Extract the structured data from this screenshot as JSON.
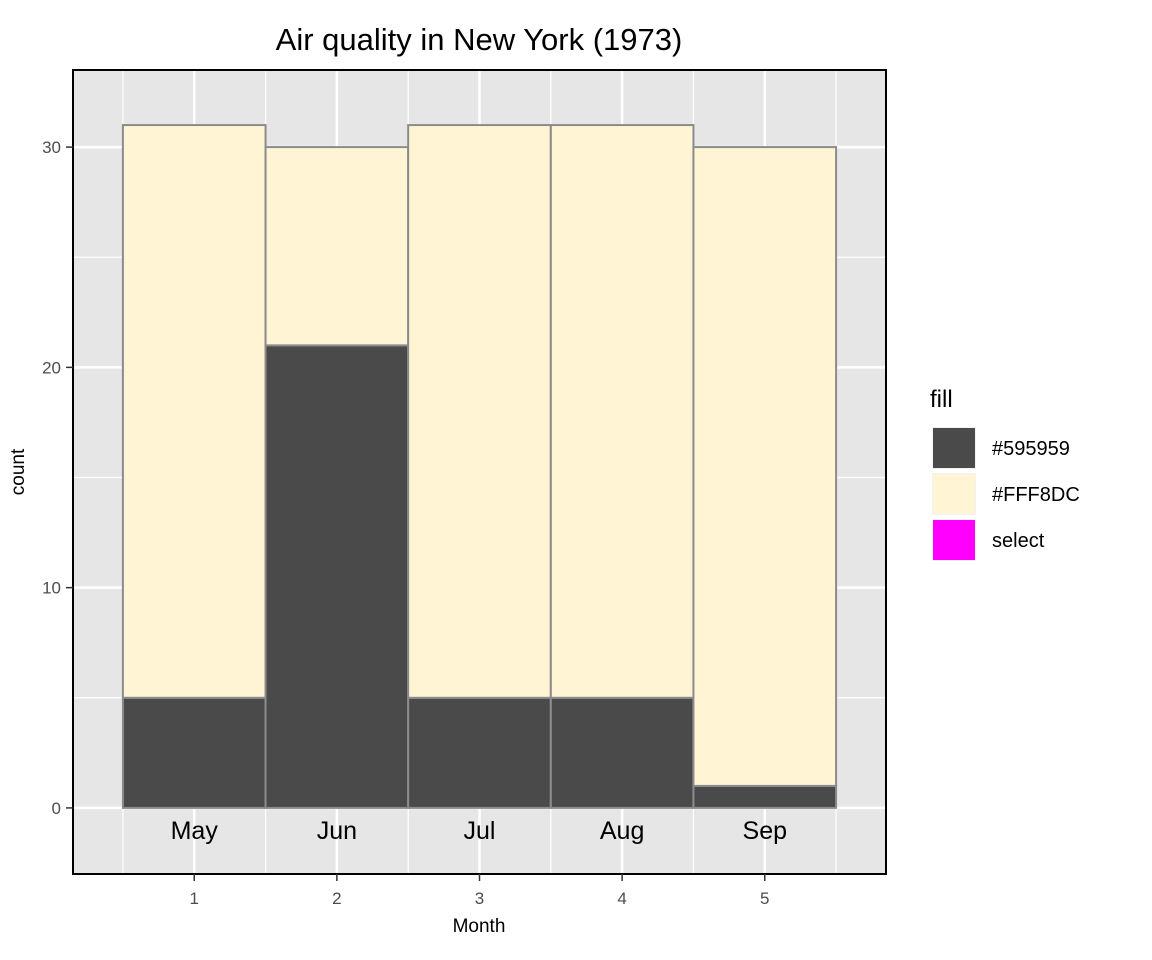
{
  "chart_data": {
    "type": "bar",
    "stacked": true,
    "title": "Air quality in New York (1973)",
    "xlabel": "Month",
    "ylabel": "count",
    "categories": [
      "1",
      "2",
      "3",
      "4",
      "5"
    ],
    "annotations": [
      "May",
      "Jun",
      "Jul",
      "Aug",
      "Sep"
    ],
    "ylim": [
      -3,
      33.5
    ],
    "yticks": [
      0,
      10,
      20,
      30
    ],
    "grid": true,
    "legend_position": "right",
    "legend_title": "fill",
    "series": [
      {
        "name": "#595959",
        "color": "#4a4a4a",
        "values": [
          5,
          21,
          5,
          5,
          1
        ]
      },
      {
        "name": "#FFF8DC",
        "color": "#fff5d5",
        "values": [
          26,
          9,
          26,
          26,
          29
        ]
      },
      {
        "name": "select",
        "color": "#ff00ff",
        "values": [
          0,
          0,
          0,
          0,
          0
        ]
      }
    ],
    "bar_outline_color": "#8c8c8c",
    "panel_background": "#e6e6e6"
  }
}
